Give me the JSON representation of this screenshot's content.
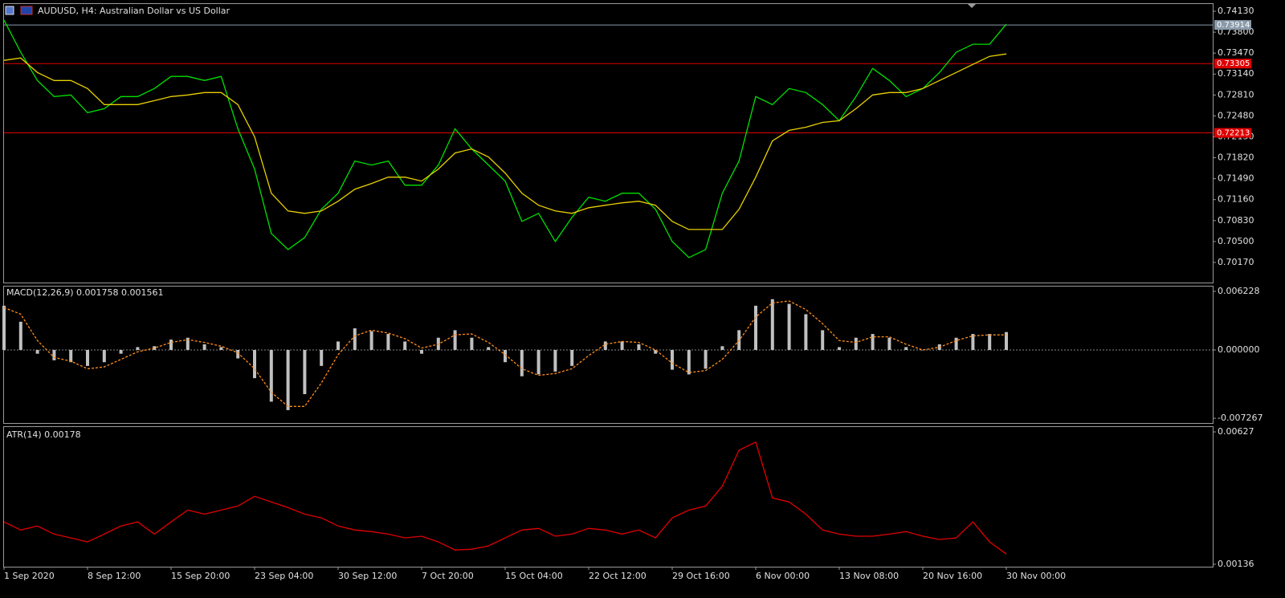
{
  "chart_data": [
    {
      "type": "line",
      "title": "AUDUSD, H4:  Australian Dollar vs US Dollar",
      "ylim": [
        0.69853,
        0.74244
      ],
      "yticks": [
        {
          "value": 0.7413,
          "label": "0.74130"
        },
        {
          "value": 0.738,
          "label": "0.73800"
        },
        {
          "value": 0.7347,
          "label": "0.73470"
        },
        {
          "value": 0.7314,
          "label": "0.73140"
        },
        {
          "value": 0.7281,
          "label": "0.72810"
        },
        {
          "value": 0.7248,
          "label": "0.72480"
        },
        {
          "value": 0.7215,
          "label": "0.72150"
        },
        {
          "value": 0.7182,
          "label": "0.71820"
        },
        {
          "value": 0.7149,
          "label": "0.71490"
        },
        {
          "value": 0.7116,
          "label": "0.71160"
        },
        {
          "value": 0.7083,
          "label": "0.70830"
        },
        {
          "value": 0.705,
          "label": "0.70500"
        },
        {
          "value": 0.7017,
          "label": "0.70170"
        }
      ],
      "hlines": [
        {
          "value": 0.73914,
          "color": "#8a9aaa"
        },
        {
          "value": 0.73305,
          "color": "#e00000"
        },
        {
          "value": 0.72213,
          "color": "#e00000"
        }
      ],
      "series": [
        {
          "color": "#00e000",
          "values": [
            0.7399,
            0.73483,
            0.73038,
            0.72785,
            0.7281,
            0.72531,
            0.72594,
            0.72785,
            0.72785,
            0.72912,
            0.73102,
            0.73102,
            0.73038,
            0.73102,
            0.72277,
            0.71642,
            0.70627,
            0.70373,
            0.70563,
            0.71008,
            0.71262,
            0.71769,
            0.71706,
            0.71769,
            0.71388,
            0.71388,
            0.71706,
            0.72277,
            0.7196,
            0.71706,
            0.71452,
            0.70817,
            0.70944,
            0.705,
            0.70881,
            0.71198,
            0.71135,
            0.71262,
            0.71262,
            0.71008,
            0.705,
            0.70246,
            0.70373,
            0.71262,
            0.71769,
            0.72785,
            0.72658,
            0.72912,
            0.72848,
            0.72658,
            0.72404,
            0.72785,
            0.73229,
            0.73038,
            0.72785,
            0.72912,
            0.73165,
            0.73483,
            0.7361,
            0.7361,
            0.73927
          ]
        },
        {
          "color": "#e8d000",
          "values": [
            0.73356,
            0.73394,
            0.73165,
            0.73038,
            0.73038,
            0.72912,
            0.72658,
            0.72658,
            0.72658,
            0.72721,
            0.72785,
            0.7281,
            0.72848,
            0.72848,
            0.72658,
            0.7215,
            0.71262,
            0.70982,
            0.70944,
            0.70982,
            0.71135,
            0.71325,
            0.71414,
            0.71515,
            0.71515,
            0.71452,
            0.71642,
            0.71896,
            0.7196,
            0.71833,
            0.71579,
            0.71262,
            0.71071,
            0.70982,
            0.70944,
            0.71033,
            0.71071,
            0.71109,
            0.71135,
            0.71071,
            0.70817,
            0.7069,
            0.7069,
            0.7069,
            0.71008,
            0.71515,
            0.72087,
            0.72252,
            0.72302,
            0.72378,
            0.72404,
            0.72594,
            0.7281,
            0.72848,
            0.72848,
            0.72912,
            0.73038,
            0.73165,
            0.73292,
            0.73419,
            0.73457
          ]
        }
      ]
    },
    {
      "type": "bar",
      "title": "MACD(12,26,9) 0.001758 0.001561",
      "ylim": [
        -0.00777,
        0.00674
      ],
      "yticks": [
        0.006228,
        {
          "value": 0,
          "label": "0.000000"
        },
        -0.007267
      ],
      "zero_line": true,
      "series": [
        {
          "kind": "bar",
          "color": "#c0c0c0",
          "values": [
            0.0047,
            0.003,
            -0.0004,
            -0.0011,
            -0.0013,
            -0.0017,
            -0.0013,
            -0.0004,
            0.0003,
            0.0004,
            0.0011,
            0.0013,
            0.0006,
            0.0003,
            -0.0009,
            -0.003,
            -0.0055,
            -0.0064,
            -0.0047,
            -0.0017,
            0.0009,
            0.0023,
            0.002,
            0.0017,
            0.0009,
            -0.0004,
            0.0013,
            0.0021,
            0.0013,
            0.0003,
            -0.0013,
            -0.0028,
            -0.0026,
            -0.0023,
            -0.0017,
            0.0,
            0.0009,
            0.0009,
            0.0006,
            -0.0004,
            -0.0021,
            -0.0026,
            -0.002,
            0.0004,
            0.0021,
            0.0047,
            0.0054,
            0.0049,
            0.0038,
            0.0021,
            0.0003,
            0.0013,
            0.0017,
            0.0013,
            0.0003,
            0.0,
            0.0006,
            0.0013,
            0.0017,
            0.0017,
            0.0019
          ]
        },
        {
          "kind": "line",
          "dashed": true,
          "color": "#ff8c1a",
          "values": [
            0.0045,
            0.0038,
            0.001,
            -0.0008,
            -0.0012,
            -0.002,
            -0.0018,
            -0.001,
            -0.0002,
            0.0002,
            0.0008,
            0.0011,
            0.0008,
            0.0004,
            -0.0003,
            -0.002,
            -0.0045,
            -0.006,
            -0.006,
            -0.0035,
            -0.0005,
            0.0015,
            0.0021,
            0.0018,
            0.0012,
            0.0002,
            0.0006,
            0.0016,
            0.0017,
            0.0008,
            -0.0005,
            -0.002,
            -0.0027,
            -0.0025,
            -0.002,
            -0.0006,
            0.0006,
            0.0009,
            0.0008,
            0.0,
            -0.0014,
            -0.0024,
            -0.0022,
            -0.001,
            0.001,
            0.0035,
            0.005,
            0.0052,
            0.0043,
            0.0028,
            0.001,
            0.0008,
            0.0014,
            0.0014,
            0.0006,
            0.0,
            0.0003,
            0.001,
            0.0015,
            0.0016,
            0.0016
          ]
        }
      ]
    },
    {
      "type": "line",
      "title": "ATR(14) 0.00178",
      "ylim": [
        0.00127,
        0.00645
      ],
      "yticks": [
        0.00627,
        0.00136
      ],
      "categories": [
        "1 Sep 2020",
        null,
        null,
        null,
        null,
        "8 Sep 12:00",
        null,
        null,
        null,
        null,
        "15 Sep 20:00",
        null,
        null,
        null,
        null,
        "23 Sep 04:00",
        null,
        null,
        null,
        null,
        "30 Sep 12:00",
        null,
        null,
        null,
        null,
        "7 Oct 20:00",
        null,
        null,
        null,
        null,
        "15 Oct 04:00",
        null,
        null,
        null,
        null,
        "22 Oct 12:00",
        null,
        null,
        null,
        null,
        "29 Oct 16:00",
        null,
        null,
        null,
        null,
        "6 Nov 00:00",
        null,
        null,
        null,
        null,
        "13 Nov 08:00",
        null,
        null,
        null,
        null,
        "20 Nov 16:00",
        null,
        null,
        null,
        null,
        "30 Nov 00:00"
      ],
      "series": [
        {
          "color": "#e00000",
          "values": [
            0.00293,
            0.00263,
            0.00278,
            0.00248,
            0.00234,
            0.00219,
            0.00248,
            0.00278,
            0.00293,
            0.00248,
            0.00293,
            0.00337,
            0.00322,
            0.00337,
            0.00352,
            0.00388,
            0.00367,
            0.00346,
            0.00322,
            0.00308,
            0.00278,
            0.00263,
            0.00257,
            0.00248,
            0.00234,
            0.0024,
            0.00219,
            0.00189,
            0.00192,
            0.00204,
            0.00234,
            0.00263,
            0.00269,
            0.0024,
            0.00248,
            0.00269,
            0.00263,
            0.00248,
            0.00263,
            0.00234,
            0.00308,
            0.00337,
            0.00352,
            0.00426,
            0.00559,
            0.00589,
            0.00382,
            0.00367,
            0.00322,
            0.00263,
            0.00248,
            0.0024,
            0.0024,
            0.00248,
            0.00257,
            0.0024,
            0.00228,
            0.00234,
            0.00293,
            0.00219,
            0.00174
          ]
        }
      ]
    }
  ]
}
